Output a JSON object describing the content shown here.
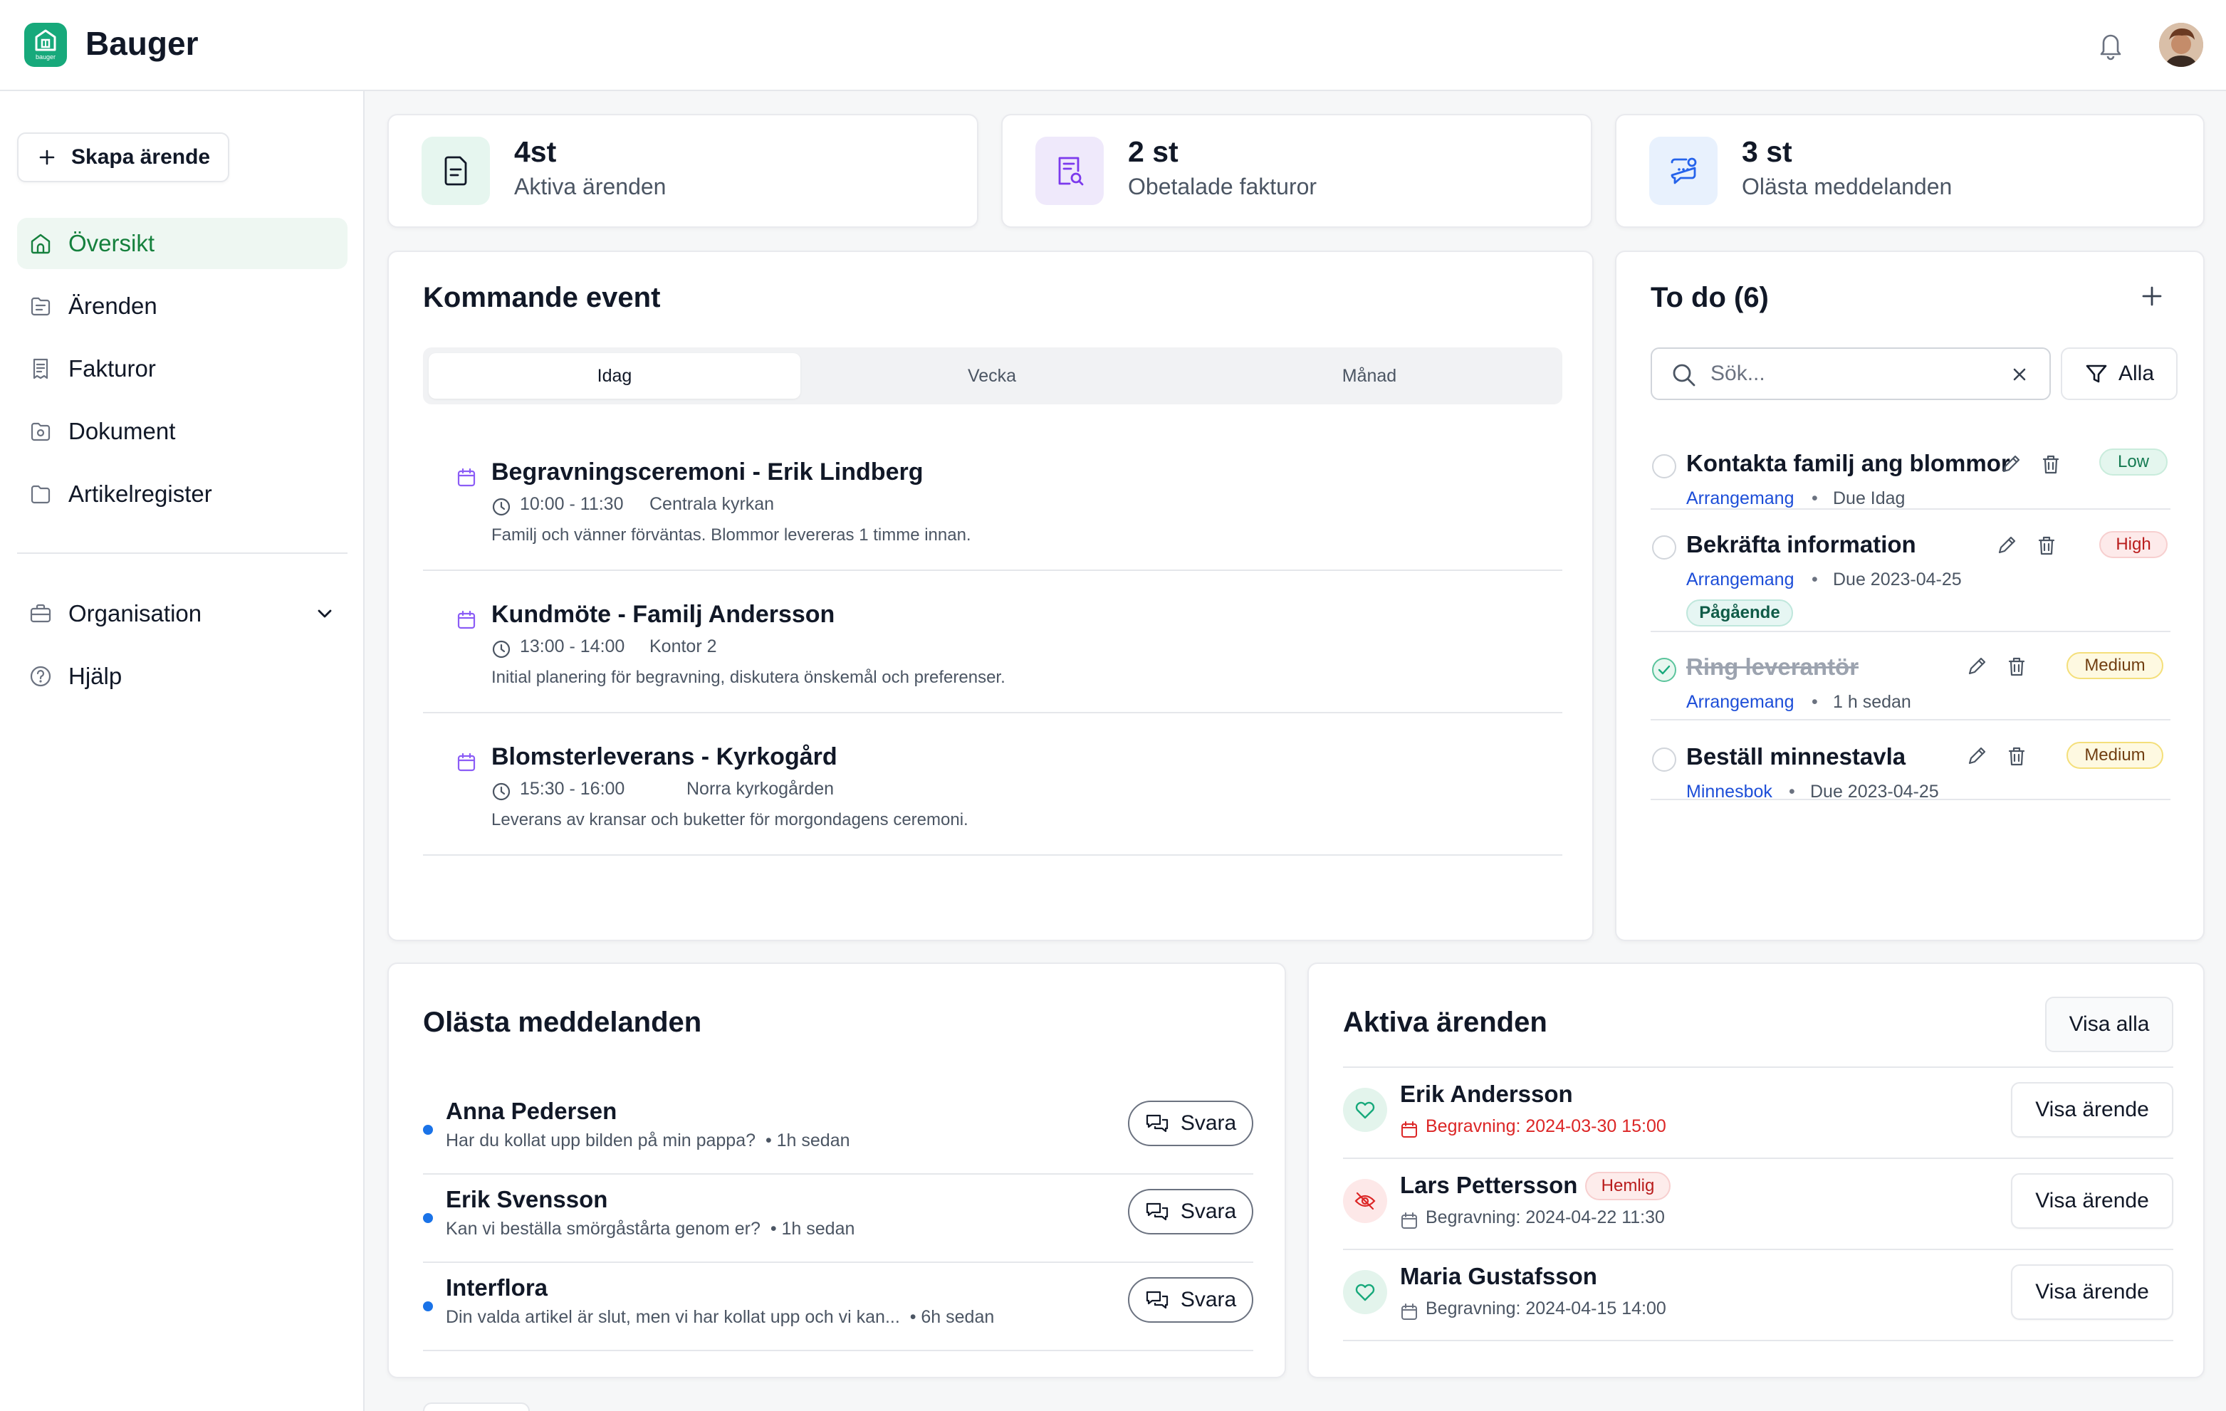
{
  "header": {
    "brand": "Bauger",
    "logo_small": "bauger"
  },
  "sidebar": {
    "create_label": "Skapa ärende",
    "items": [
      {
        "label": "Översikt",
        "icon": "home-icon",
        "active": true
      },
      {
        "label": "Ärenden",
        "icon": "folder-file-icon"
      },
      {
        "label": "Fakturor",
        "icon": "receipt-icon"
      },
      {
        "label": "Dokument",
        "icon": "document-icon"
      },
      {
        "label": "Artikelregister",
        "icon": "folder-icon"
      }
    ],
    "secondary": [
      {
        "label": "Organisation",
        "icon": "briefcase-icon"
      },
      {
        "label": "Hjälp",
        "icon": "help-circle-icon"
      }
    ]
  },
  "stats": [
    {
      "number": "4st",
      "label": "Aktiva ärenden",
      "color": "#e6f6ef"
    },
    {
      "number": "2 st",
      "label": "Obetalade fakturor",
      "color": "#efe9fb"
    },
    {
      "number": "3 st",
      "label": "Olästa meddelanden",
      "color": "#e8f1fd"
    }
  ],
  "events": {
    "title": "Kommande event",
    "tabs": [
      "Idag",
      "Vecka",
      "Månad"
    ],
    "items": [
      {
        "title": "Begravningsceremoni - Erik Lindberg",
        "time": "10:00 - 11:30",
        "location": "Centrala kyrkan",
        "description": "Familj och vänner förväntas. Blommor levereras 1 timme innan."
      },
      {
        "title": "Kundmöte - Familj Andersson",
        "time": "13:00 - 14:00",
        "location": "Kontor 2",
        "description": "Initial planering för begravning, diskutera önskemål och preferenser."
      },
      {
        "title": "Blomsterleverans - Kyrkogård",
        "time": "15:30 - 16:00",
        "location": "Norra kyrkogården",
        "description": "Leverans av kransar och buketter för morgondagens ceremoni."
      }
    ]
  },
  "todo": {
    "title": "To do (6)",
    "search_placeholder": "Sök...",
    "filter_label": "Alla",
    "items": [
      {
        "title": "Kontakta familj ang blommor",
        "category": "Arrangemang",
        "due": "Due Idag",
        "priority": "Low",
        "done": false
      },
      {
        "title": "Bekräfta information",
        "category": "Arrangemang",
        "due": "Due 2023-04-25",
        "priority": "High",
        "status": "Pågående",
        "done": false
      },
      {
        "title": "Ring leverantör",
        "category": "Arrangemang",
        "due": "1 h sedan",
        "priority": "Medium",
        "done": true
      },
      {
        "title": "Beställ minnestavla",
        "category": "Minnesbok",
        "due": "Due 2023-04-25",
        "priority": "Medium",
        "done": false
      }
    ],
    "dot": "•"
  },
  "messages": {
    "title": "Olästa meddelanden",
    "reply_label": "Svara",
    "items": [
      {
        "name": "Anna Pedersen",
        "text": "Har du kollat upp bilden på min pappa?",
        "time": "• 1h sedan"
      },
      {
        "name": "Erik Svensson",
        "text": "Kan vi beställa smörgåstårta genom er?",
        "time": "• 1h sedan"
      },
      {
        "name": "Interflora",
        "text": "Din valda artikel är slut, men vi har kollat upp och vi kan...",
        "time": "• 6h sedan"
      }
    ]
  },
  "cases": {
    "title": "Aktiva ärenden",
    "show_all": "Visa alla",
    "view_label": "Visa ärende",
    "items": [
      {
        "name": "Erik Andersson",
        "date": "Begravning: 2024-03-30 15:00",
        "urgent": true,
        "icon": "heart-icon"
      },
      {
        "name": "Lars Pettersson",
        "date": "Begravning: 2024-04-22 11:30",
        "tag": "Hemlig",
        "icon": "eye-off-icon"
      },
      {
        "name": "Maria Gustafsson",
        "date": "Begravning: 2024-04-15 14:00",
        "icon": "heart-icon"
      }
    ]
  },
  "colors": {
    "accent": "#17a97b",
    "link": "#1d4ed8",
    "unread": "#1a73e8",
    "danger": "#dc2626"
  }
}
